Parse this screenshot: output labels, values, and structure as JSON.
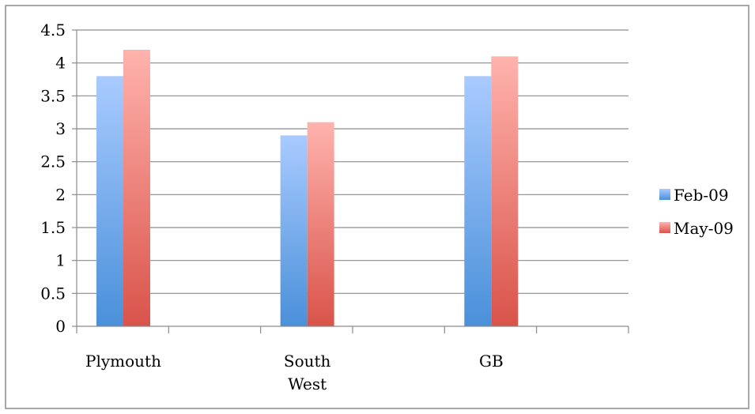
{
  "chart_data": {
    "type": "bar",
    "title": "",
    "xlabel": "",
    "ylabel": "",
    "categories": [
      "Plymouth",
      "South\nWest",
      "GB"
    ],
    "series": [
      {
        "name": "Feb-09",
        "values": [
          3.8,
          2.9,
          3.8
        ],
        "color_top": "#a9cbff",
        "color_bottom": "#4a90d9"
      },
      {
        "name": "May-09",
        "values": [
          4.2,
          3.1,
          4.1
        ],
        "color_top": "#ffb3ad",
        "color_bottom": "#d9534a"
      }
    ],
    "ylim": [
      0,
      4.5
    ],
    "yticks": [
      "0",
      "0.5",
      "1",
      "1.5",
      "2",
      "2.5",
      "3",
      "3.5",
      "4",
      "4.5"
    ],
    "grid": true,
    "legend_position": "right",
    "colors": {
      "gridline": "#8c8c8c",
      "frame": "#8c8c8c"
    }
  }
}
